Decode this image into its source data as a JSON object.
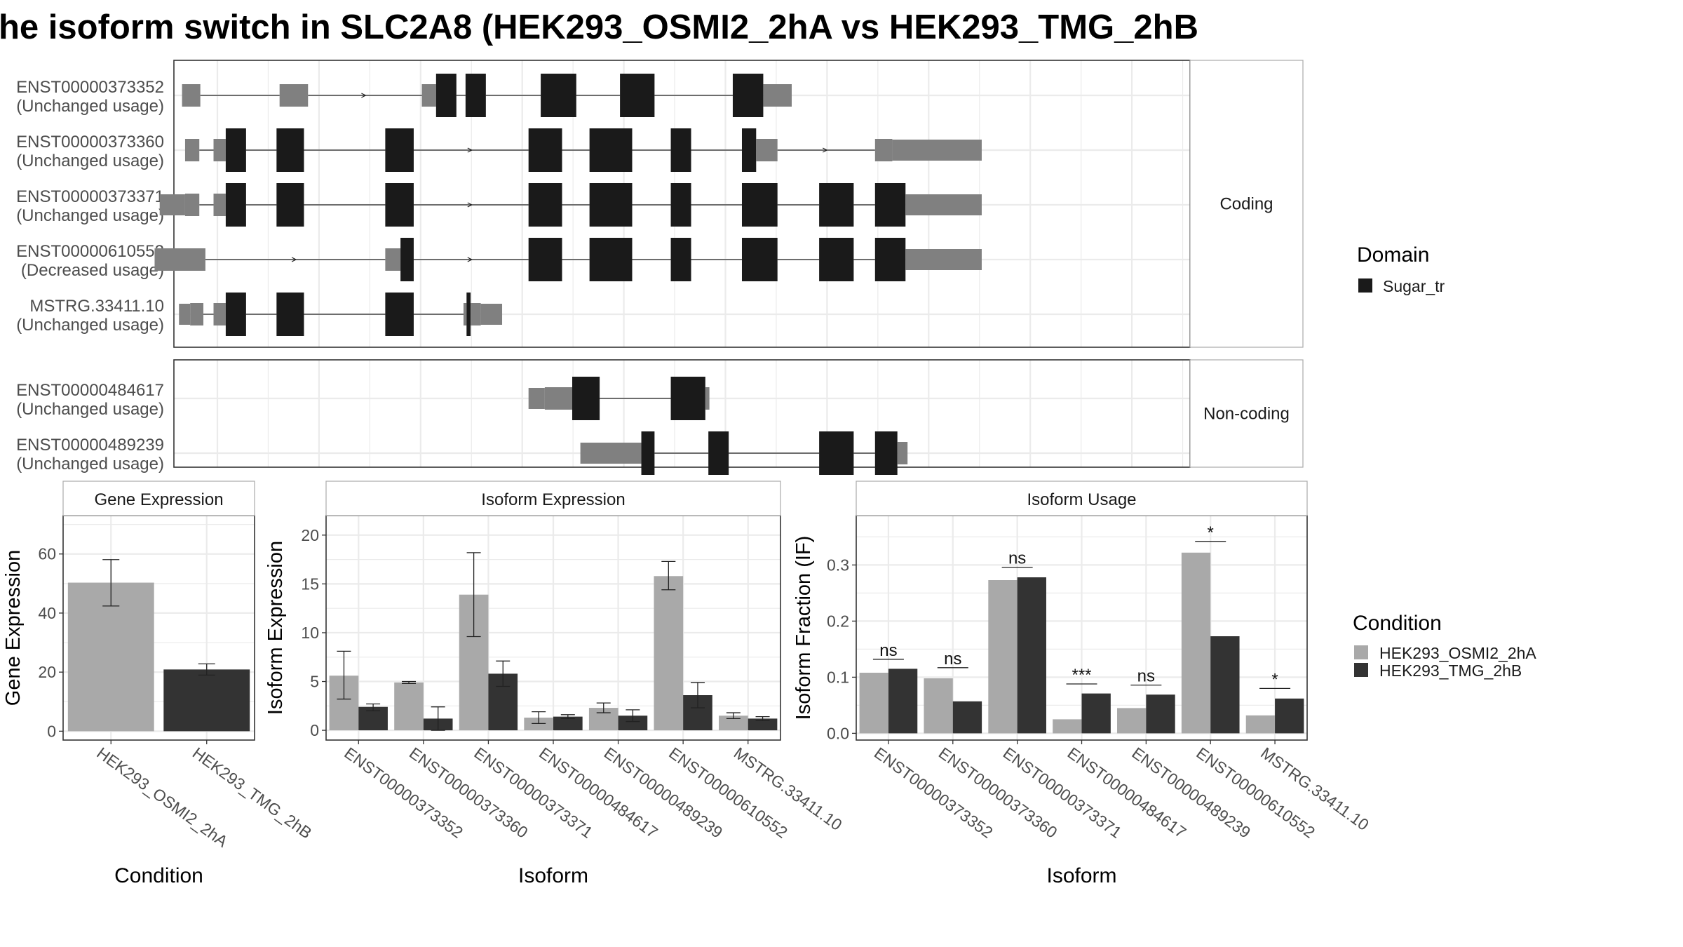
{
  "title": "he isoform switch in SLC2A8 (HEK293_OSMI2_2hA vs HEK293_TMG_2hB",
  "colors": {
    "cond_a": "#a9a9a9",
    "cond_b": "#333333",
    "utr": "#808080",
    "domain": "#1a1a1a",
    "panel_border": "#333333",
    "strip_fill": "#ffffff",
    "grid": "#ebebeb"
  },
  "legends": {
    "domain": {
      "title": "Domain",
      "items": [
        {
          "label": "Sugar_tr",
          "color": "#1a1a1a"
        }
      ]
    },
    "condition": {
      "title": "Condition",
      "items": [
        {
          "label": "HEK293_OSMI2_2hA",
          "color": "#a9a9a9"
        },
        {
          "label": "HEK293_TMG_2hB",
          "color": "#333333"
        }
      ]
    }
  },
  "chart_data": [
    {
      "type": "transcript-structure",
      "groups": [
        {
          "label": "Coding",
          "transcripts": [
            {
              "id": "ENST00000373352",
              "usage": "(Unchanged usage)",
              "exons": [
                {
                  "s": 0.8,
                  "e": 2.6,
                  "h": "utr"
                },
                {
                  "s": 10.4,
                  "e": 13.2,
                  "h": "utr"
                },
                {
                  "s": 24.4,
                  "e": 25.8,
                  "h": "utr"
                },
                {
                  "s": 25.8,
                  "e": 27.8,
                  "h": "dom"
                },
                {
                  "s": 28.7,
                  "e": 30.7,
                  "h": "dom"
                },
                {
                  "s": 36.1,
                  "e": 39.6,
                  "h": "dom"
                },
                {
                  "s": 43.9,
                  "e": 47.3,
                  "h": "dom"
                },
                {
                  "s": 55.0,
                  "e": 58.0,
                  "h": "dom"
                },
                {
                  "s": 58.0,
                  "e": 60.8,
                  "h": "utr"
                }
              ]
            },
            {
              "id": "ENST00000373360",
              "usage": "(Unchanged usage)",
              "exons": [
                {
                  "s": 1.1,
                  "e": 2.5,
                  "h": "utr"
                },
                {
                  "s": 3.9,
                  "e": 5.1,
                  "h": "utr"
                },
                {
                  "s": 5.1,
                  "e": 7.1,
                  "h": "dom"
                },
                {
                  "s": 10.1,
                  "e": 12.8,
                  "h": "dom"
                },
                {
                  "s": 20.8,
                  "e": 23.6,
                  "h": "dom"
                },
                {
                  "s": 34.9,
                  "e": 38.2,
                  "h": "dom"
                },
                {
                  "s": 40.9,
                  "e": 45.1,
                  "h": "dom"
                },
                {
                  "s": 48.9,
                  "e": 50.9,
                  "h": "dom"
                },
                {
                  "s": 55.9,
                  "e": 57.3,
                  "h": "dom"
                },
                {
                  "s": 57.3,
                  "e": 59.4,
                  "h": "utr"
                },
                {
                  "s": 69.0,
                  "e": 70.7,
                  "h": "utr"
                },
                {
                  "s": 70.7,
                  "e": 79.5,
                  "h": "utrs"
                }
              ]
            },
            {
              "id": "ENST00000373371",
              "usage": "(Unchanged usage)",
              "exons": [
                {
                  "s": -1.4,
                  "e": 1.1,
                  "h": "utrs"
                },
                {
                  "s": 1.1,
                  "e": 2.5,
                  "h": "utr"
                },
                {
                  "s": 3.9,
                  "e": 5.1,
                  "h": "utr"
                },
                {
                  "s": 5.1,
                  "e": 7.1,
                  "h": "dom"
                },
                {
                  "s": 10.1,
                  "e": 12.8,
                  "h": "dom"
                },
                {
                  "s": 20.8,
                  "e": 23.6,
                  "h": "dom"
                },
                {
                  "s": 34.9,
                  "e": 38.2,
                  "h": "dom"
                },
                {
                  "s": 40.9,
                  "e": 45.1,
                  "h": "dom"
                },
                {
                  "s": 48.9,
                  "e": 50.9,
                  "h": "dom"
                },
                {
                  "s": 55.9,
                  "e": 59.4,
                  "h": "dom"
                },
                {
                  "s": 63.5,
                  "e": 66.9,
                  "h": "dom"
                },
                {
                  "s": 69.0,
                  "e": 72.0,
                  "h": "dom"
                },
                {
                  "s": 72.0,
                  "e": 79.5,
                  "h": "utrs"
                }
              ]
            },
            {
              "id": "ENST00000610552",
              "usage": "(Decreased usage)",
              "exons": [
                {
                  "s": -1.9,
                  "e": 3.1,
                  "h": "utr"
                },
                {
                  "s": 20.8,
                  "e": 22.3,
                  "h": "utr"
                },
                {
                  "s": 22.3,
                  "e": 23.6,
                  "h": "dom"
                },
                {
                  "s": 34.9,
                  "e": 38.2,
                  "h": "dom"
                },
                {
                  "s": 40.9,
                  "e": 45.1,
                  "h": "dom"
                },
                {
                  "s": 48.9,
                  "e": 50.9,
                  "h": "dom"
                },
                {
                  "s": 55.9,
                  "e": 59.4,
                  "h": "dom"
                },
                {
                  "s": 63.5,
                  "e": 66.9,
                  "h": "dom"
                },
                {
                  "s": 69.0,
                  "e": 72.0,
                  "h": "dom"
                },
                {
                  "s": 72.0,
                  "e": 79.5,
                  "h": "utrs"
                }
              ]
            },
            {
              "id": "MSTRG.33411.10",
              "usage": "(Unchanged usage)",
              "exons": [
                {
                  "s": 0.5,
                  "e": 1.6,
                  "h": "utrs"
                },
                {
                  "s": 1.6,
                  "e": 2.9,
                  "h": "utr"
                },
                {
                  "s": 3.9,
                  "e": 5.1,
                  "h": "utr"
                },
                {
                  "s": 5.1,
                  "e": 7.1,
                  "h": "dom"
                },
                {
                  "s": 10.1,
                  "e": 12.8,
                  "h": "dom"
                },
                {
                  "s": 20.8,
                  "e": 23.6,
                  "h": "dom"
                },
                {
                  "s": 28.5,
                  "e": 28.8,
                  "h": "utr"
                },
                {
                  "s": 28.8,
                  "e": 29.2,
                  "h": "dom"
                },
                {
                  "s": 29.2,
                  "e": 30.2,
                  "h": "utr"
                },
                {
                  "s": 30.2,
                  "e": 32.3,
                  "h": "utrs"
                }
              ]
            }
          ]
        },
        {
          "label": "Non-coding",
          "transcripts": [
            {
              "id": "ENST00000484617",
              "usage": "(Unchanged usage)",
              "exons": [
                {
                  "s": 34.9,
                  "e": 36.5,
                  "h": "utrs"
                },
                {
                  "s": 36.5,
                  "e": 39.2,
                  "h": "utr"
                },
                {
                  "s": 39.2,
                  "e": 41.9,
                  "h": "dom"
                },
                {
                  "s": 48.9,
                  "e": 52.3,
                  "h": "dom"
                },
                {
                  "s": 52.3,
                  "e": 52.7,
                  "h": "utr"
                }
              ]
            },
            {
              "id": "ENST00000489239",
              "usage": "(Unchanged usage)",
              "exons": [
                {
                  "s": 40.0,
                  "e": 46.0,
                  "h": "utrs"
                },
                {
                  "s": 46.0,
                  "e": 47.3,
                  "h": "dom"
                },
                {
                  "s": 52.6,
                  "e": 54.6,
                  "h": "dom"
                },
                {
                  "s": 63.5,
                  "e": 66.9,
                  "h": "dom"
                },
                {
                  "s": 69.0,
                  "e": 71.2,
                  "h": "dom"
                },
                {
                  "s": 71.2,
                  "e": 72.2,
                  "h": "utr"
                }
              ]
            }
          ]
        }
      ]
    },
    {
      "type": "bar",
      "title": "Gene Expression",
      "xlabel": "Condition",
      "ylabel": "Gene Expression",
      "categories": [
        "HEK293_OSMI2_2hA",
        "HEK293_TMG_2hB"
      ],
      "values": [
        50.3,
        20.9
      ],
      "err_low": [
        42.4,
        19.0
      ],
      "err_high": [
        58.1,
        22.8
      ],
      "ylim": [
        -3,
        73
      ],
      "yticks": [
        0,
        20,
        40,
        60
      ]
    },
    {
      "type": "bar",
      "title": "Isoform Expression",
      "xlabel": "Isoform",
      "ylabel": "Isoform Expression",
      "categories": [
        "ENST00000373352",
        "ENST00000373360",
        "ENST00000373371",
        "ENST00000484617",
        "ENST00000489239",
        "ENST00000610552",
        "MSTRG.33411.10"
      ],
      "series": [
        {
          "name": "HEK293_OSMI2_2hA",
          "values": [
            5.6,
            4.9,
            13.9,
            1.3,
            2.3,
            15.8,
            1.5
          ],
          "err_low": [
            3.2,
            4.8,
            9.6,
            0.7,
            1.8,
            14.4,
            1.2
          ],
          "err_high": [
            8.1,
            5.0,
            18.2,
            1.9,
            2.8,
            17.3,
            1.8
          ]
        },
        {
          "name": "HEK293_TMG_2hB",
          "values": [
            2.4,
            1.2,
            5.8,
            1.4,
            1.5,
            3.6,
            1.2
          ],
          "err_low": [
            2.0,
            0.0,
            4.5,
            1.2,
            0.9,
            2.3,
            1.0
          ],
          "err_high": [
            2.7,
            2.4,
            7.1,
            1.6,
            2.1,
            4.9,
            1.4
          ]
        }
      ],
      "ylim": [
        -1,
        22
      ],
      "yticks": [
        0,
        5,
        10,
        15,
        20
      ]
    },
    {
      "type": "bar",
      "title": "Isoform Usage",
      "xlabel": "Isoform",
      "ylabel": "Isoform Fraction (IF)",
      "categories": [
        "ENST00000373352",
        "ENST00000373360",
        "ENST00000373371",
        "ENST00000484617",
        "ENST00000489239",
        "ENST00000610552",
        "MSTRG.33411.10"
      ],
      "series": [
        {
          "name": "HEK293_OSMI2_2hA",
          "values": [
            0.108,
            0.098,
            0.273,
            0.025,
            0.045,
            0.322,
            0.032
          ]
        },
        {
          "name": "HEK293_TMG_2hB",
          "values": [
            0.115,
            0.057,
            0.278,
            0.071,
            0.069,
            0.173,
            0.062
          ]
        }
      ],
      "significance": [
        "ns",
        "ns",
        "ns",
        "***",
        "ns",
        "*",
        "*"
      ],
      "sig_level": [
        0.132,
        0.117,
        0.296,
        0.088,
        0.086,
        0.342,
        0.08
      ],
      "ylim": [
        -0.012,
        0.388
      ],
      "yticks": [
        0.0,
        0.1,
        0.2,
        0.3
      ],
      "ytick_labels": [
        "0.0",
        "0.1",
        "0.2",
        "0.3"
      ]
    }
  ]
}
